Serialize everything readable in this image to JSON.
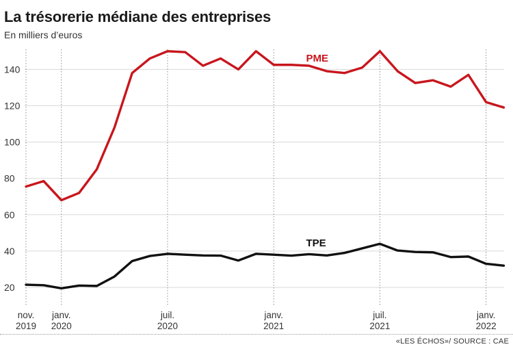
{
  "title": "La trésorerie médiane des entreprises",
  "subtitle": "En milliers d’euros",
  "source": "«LES ÉCHOS»/ SOURCE : CAE",
  "colors": {
    "pme": "#c8161d",
    "tpe": "#111111",
    "grid": "#d9d9d9"
  },
  "chart_data": {
    "type": "line",
    "title": "La trésorerie médiane des entreprises",
    "subtitle": "En milliers d’euros",
    "x": [
      "2019-11",
      "2019-12",
      "2020-01",
      "2020-02",
      "2020-03",
      "2020-04",
      "2020-05",
      "2020-06",
      "2020-07",
      "2020-08",
      "2020-09",
      "2020-10",
      "2020-11",
      "2020-12",
      "2021-01",
      "2021-02",
      "2021-03",
      "2021-04",
      "2021-05",
      "2021-06",
      "2021-07",
      "2021-08",
      "2021-09",
      "2021-10",
      "2021-11",
      "2021-12",
      "2022-01",
      "2022-02"
    ],
    "xtick_labels": [
      {
        "x": "2019-11",
        "line1": "nov.",
        "line2": "2019"
      },
      {
        "x": "2020-01",
        "line1": "janv.",
        "line2": "2020"
      },
      {
        "x": "2020-07",
        "line1": "juil.",
        "line2": "2020"
      },
      {
        "x": "2021-01",
        "line1": "janv.",
        "line2": "2021"
      },
      {
        "x": "2021-07",
        "line1": "juil.",
        "line2": "2021"
      },
      {
        "x": "2022-01",
        "line1": "janv.",
        "line2": "2022"
      }
    ],
    "yticks": [
      20,
      40,
      60,
      80,
      100,
      120,
      140
    ],
    "ylim": [
      15,
      153
    ],
    "grid": true,
    "series": [
      {
        "name": "PME",
        "key": "pme",
        "values": [
          75.5,
          78.5,
          68,
          72,
          85,
          108,
          138,
          146,
          150,
          149.5,
          142,
          146,
          140,
          150,
          142.5,
          142.5,
          142,
          139,
          138,
          141,
          150,
          139,
          132.5,
          134,
          130.5,
          137,
          122,
          119
        ]
      },
      {
        "name": "TPE",
        "key": "tpe",
        "values": [
          21.5,
          21.2,
          19.5,
          21,
          20.8,
          26,
          34.5,
          37.3,
          38.5,
          38,
          37.6,
          37.5,
          34.8,
          38.5,
          38,
          37.5,
          38.3,
          37.6,
          39,
          41.5,
          44,
          40.3,
          39.5,
          39.3,
          36.7,
          37,
          33,
          32
        ]
      }
    ]
  }
}
